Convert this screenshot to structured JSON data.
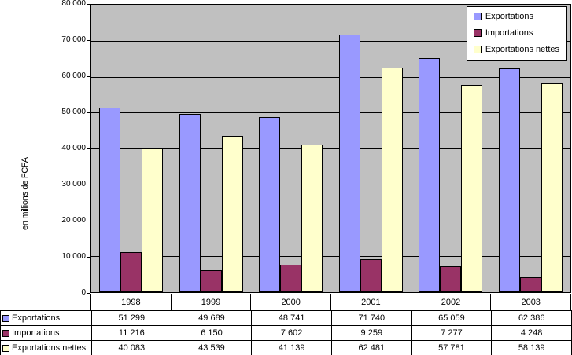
{
  "chart_data": {
    "type": "bar",
    "title": "",
    "y_axis_title": "en millions de FCFA",
    "categories": [
      "1998",
      "1999",
      "2000",
      "2001",
      "2002",
      "2003"
    ],
    "series": [
      {
        "name": "Exportations",
        "color": "#9999FF",
        "values": [
          51299,
          49689,
          48741,
          71740,
          65059,
          62386
        ],
        "labels": [
          "51 299",
          "49 689",
          "48 741",
          "71 740",
          "65 059",
          "62 386"
        ]
      },
      {
        "name": "Importations",
        "color": "#993366",
        "values": [
          11216,
          6150,
          7602,
          9259,
          7277,
          4248
        ],
        "labels": [
          "11 216",
          "6 150",
          "7 602",
          "9 259",
          "7 277",
          "4 248"
        ]
      },
      {
        "name": "Exportations nettes",
        "color": "#FFFFCC",
        "values": [
          40083,
          43539,
          41139,
          62481,
          57781,
          58139
        ],
        "labels": [
          "40 083",
          "43 539",
          "41 139",
          "62 481",
          "57 781",
          "58 139"
        ]
      }
    ],
    "ylim": [
      0,
      80000
    ],
    "y_tick_step": 10000,
    "y_tick_labels": [
      "0",
      "10 000",
      "20 000",
      "30 000",
      "40 000",
      "50 000",
      "60 000",
      "70 000",
      "80 000"
    ],
    "legend_position": "top-right",
    "grid": true,
    "plot_background": "#C0C0C0",
    "gridline_color": "#000000",
    "bar_border_color": "#000000",
    "has_data_table": true
  }
}
